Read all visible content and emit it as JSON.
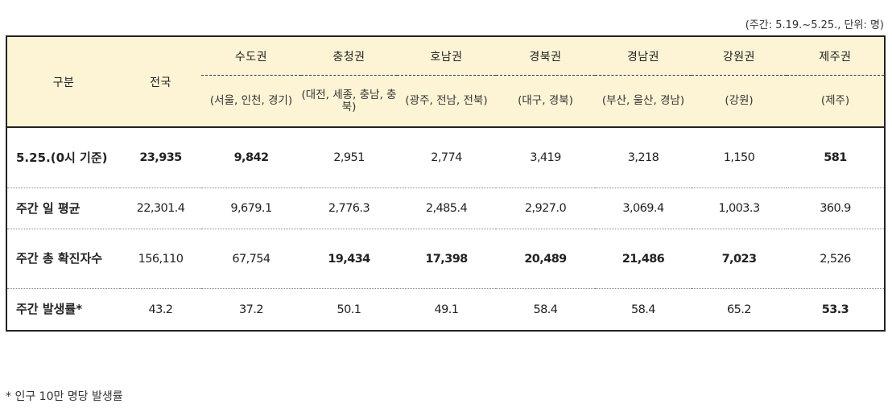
{
  "unit_note": "(주간: 5.19.~5.25., 단위: 명)",
  "header": {
    "category": "구분",
    "national": "전국",
    "regions": [
      {
        "name": "수도권",
        "sub": "(서울, 인천, 경기)"
      },
      {
        "name": "충청권",
        "sub": "(대전, 세종, 충남, 충북)"
      },
      {
        "name": "호남권",
        "sub": "(광주, 전남, 전북)"
      },
      {
        "name": "경북권",
        "sub": "(대구, 경북)"
      },
      {
        "name": "경남권",
        "sub": "(부산, 울산, 경남)"
      },
      {
        "name": "강원권",
        "sub": "(강원)"
      },
      {
        "name": "제주권",
        "sub": "(제주)"
      }
    ]
  },
  "rows": [
    {
      "label": "5.25.(0시 기준)",
      "values": [
        "23,935",
        "9,842",
        "2,951",
        "2,774",
        "3,419",
        "3,218",
        "1,150",
        "581"
      ]
    },
    {
      "label": "주간 일 평균",
      "values": [
        "22,301.4",
        "9,679.1",
        "2,776.3",
        "2,485.4",
        "2,927.0",
        "3,069.4",
        "1,003.3",
        "360.9"
      ]
    },
    {
      "label": "주간 총 확진자수",
      "values": [
        "156,110",
        "67,754",
        "19,434",
        "17,398",
        "20,489",
        "21,486",
        "7,023",
        "2,526"
      ]
    },
    {
      "label": "주간 발생률*",
      "values": [
        "43.2",
        "37.2",
        "50.1",
        "49.1",
        "58.4",
        "58.4",
        "65.2",
        "53.3"
      ]
    }
  ],
  "footnote": "* 인구 10만 명당 발생률"
}
